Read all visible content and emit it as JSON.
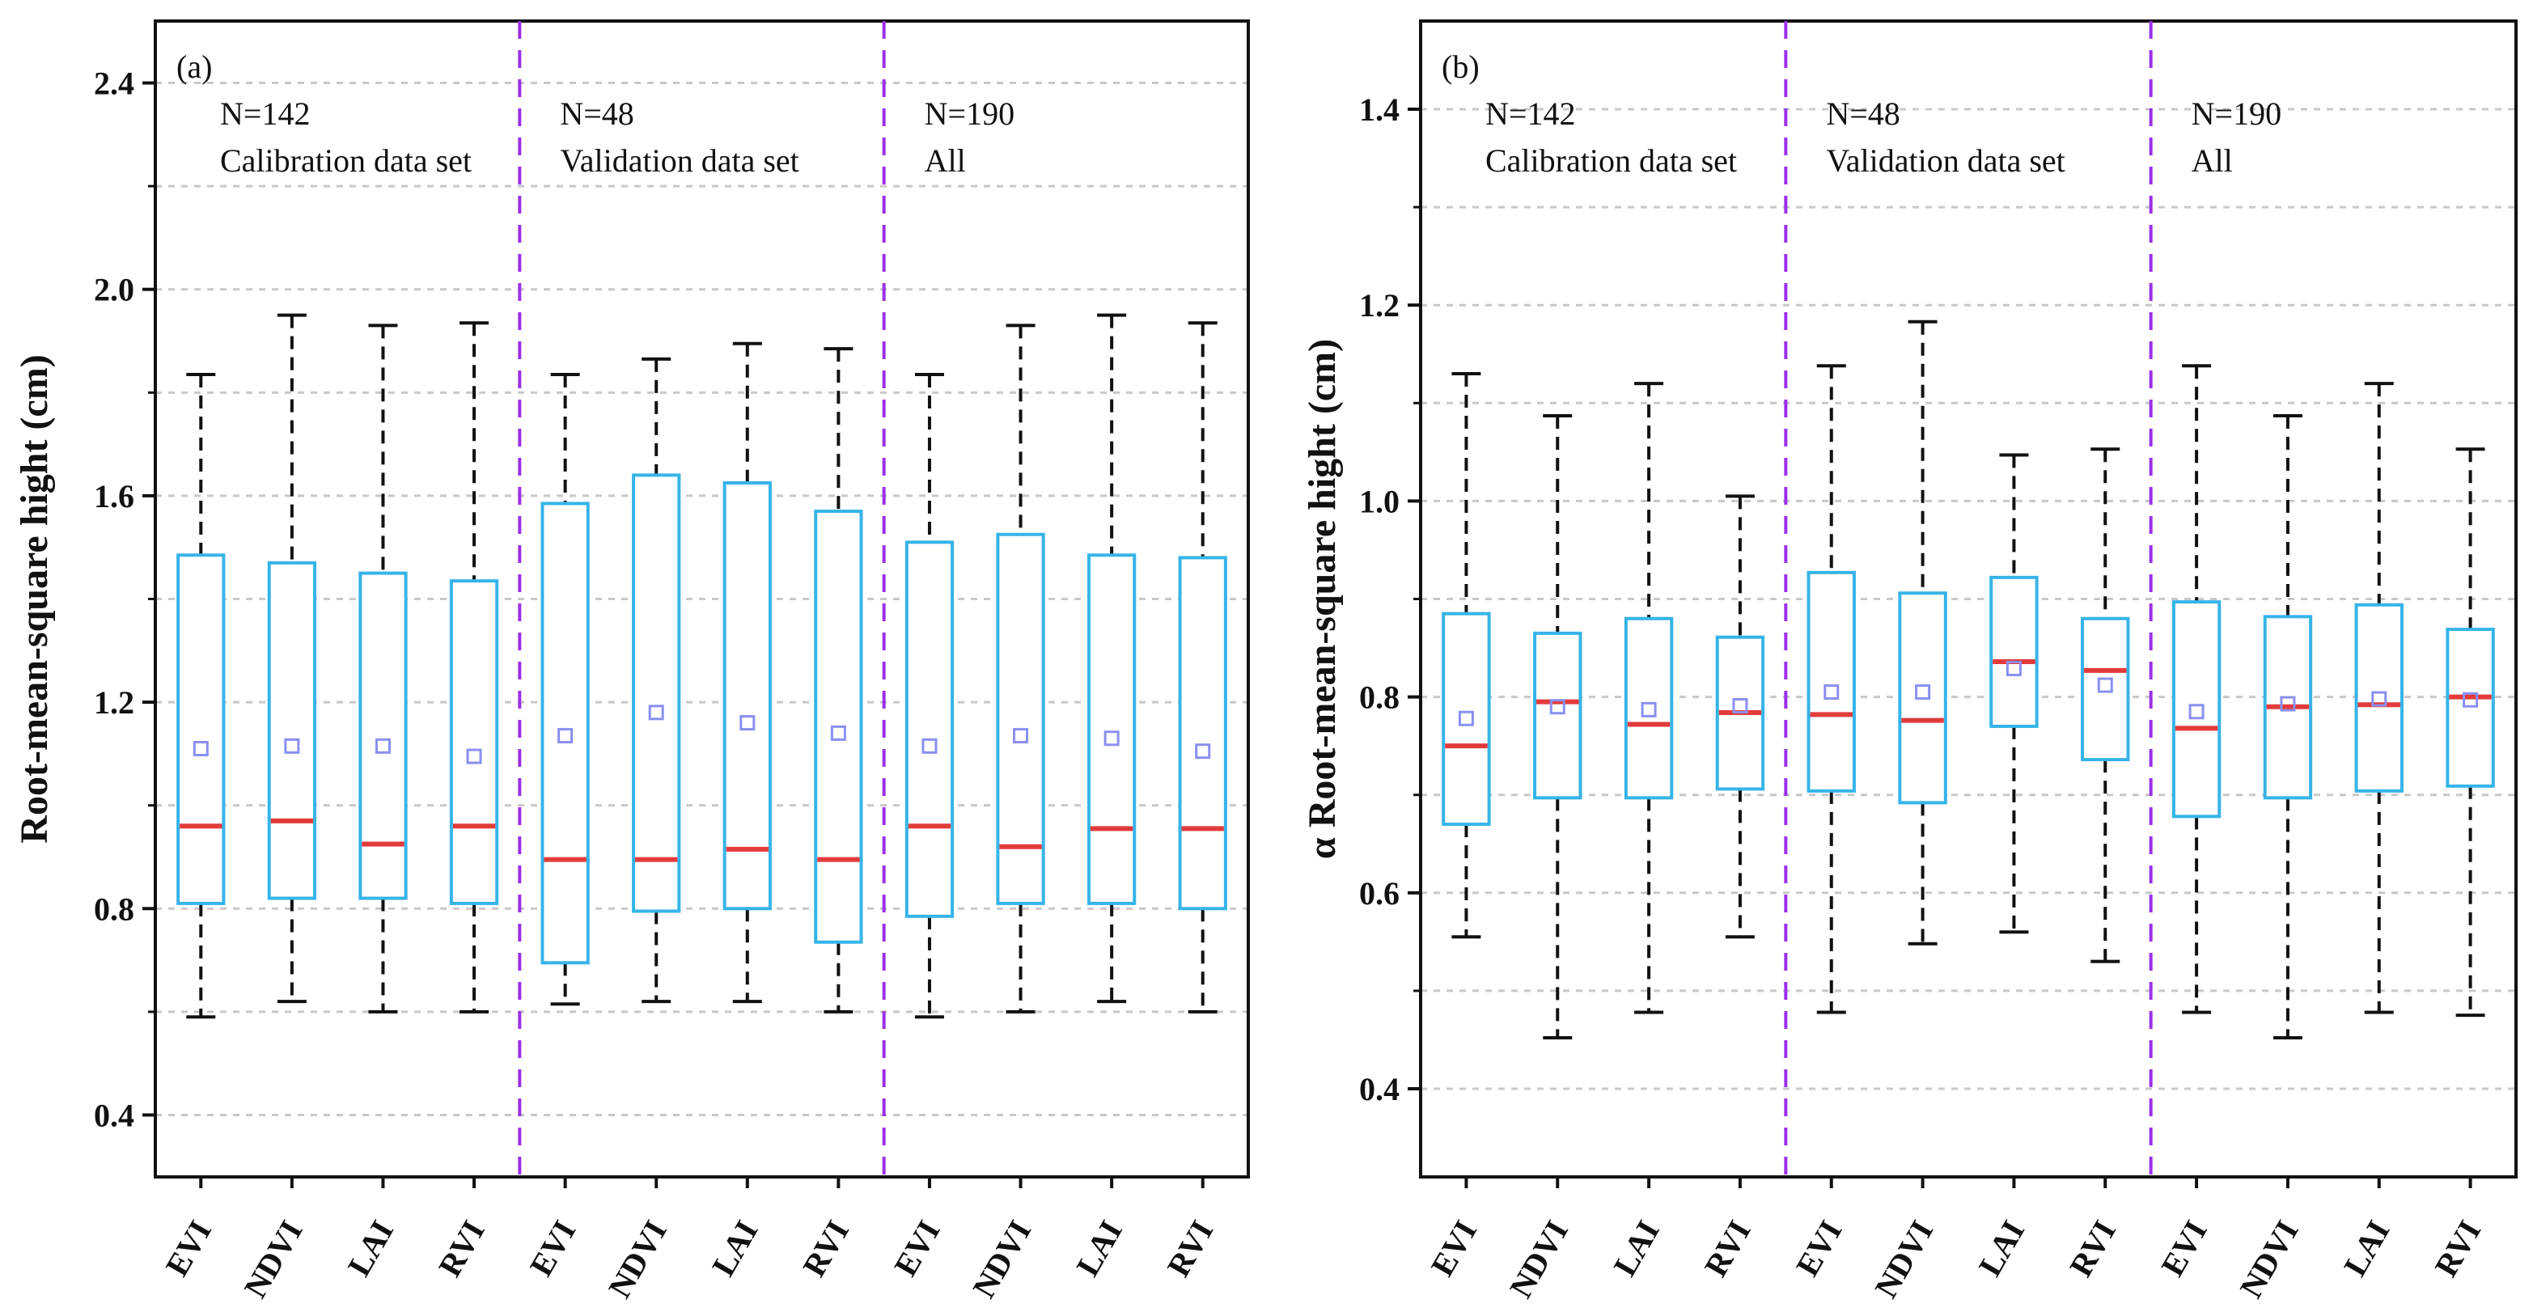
{
  "chart_data": [
    {
      "type": "box",
      "panel_label": "(a)",
      "ylabel": "Root-mean-square hight (cm)",
      "ylim": [
        0.28,
        2.52
      ],
      "yticks": [
        0.4,
        0.8,
        1.2,
        1.6,
        2.0,
        2.4
      ],
      "yticklabels": [
        "0.4",
        "0.8",
        "1.2",
        "1.6",
        "2.0",
        "2.4"
      ],
      "grid": true,
      "groups": [
        {
          "n_label": "N=142",
          "desc": "Calibration data set",
          "boxes": [
            {
              "category": "EVI",
              "min": 0.59,
              "q1": 0.81,
              "median": 0.96,
              "q3": 1.485,
              "max": 1.835,
              "mean": 1.11
            },
            {
              "category": "NDVI",
              "min": 0.62,
              "q1": 0.82,
              "median": 0.97,
              "q3": 1.47,
              "max": 1.95,
              "mean": 1.115
            },
            {
              "category": "LAI",
              "min": 0.6,
              "q1": 0.82,
              "median": 0.925,
              "q3": 1.45,
              "max": 1.93,
              "mean": 1.115
            },
            {
              "category": "RVI",
              "min": 0.6,
              "q1": 0.81,
              "median": 0.96,
              "q3": 1.435,
              "max": 1.935,
              "mean": 1.095
            }
          ]
        },
        {
          "n_label": "N=48",
          "desc": "Validation data set",
          "boxes": [
            {
              "category": "EVI",
              "min": 0.615,
              "q1": 0.695,
              "median": 0.895,
              "q3": 1.585,
              "max": 1.835,
              "mean": 1.135
            },
            {
              "category": "NDVI",
              "min": 0.62,
              "q1": 0.795,
              "median": 0.895,
              "q3": 1.64,
              "max": 1.865,
              "mean": 1.18
            },
            {
              "category": "LAI",
              "min": 0.62,
              "q1": 0.8,
              "median": 0.915,
              "q3": 1.625,
              "max": 1.895,
              "mean": 1.16
            },
            {
              "category": "RVI",
              "min": 0.6,
              "q1": 0.735,
              "median": 0.895,
              "q3": 1.57,
              "max": 1.885,
              "mean": 1.14
            }
          ]
        },
        {
          "n_label": "N=190",
          "desc": "All",
          "boxes": [
            {
              "category": "EVI",
              "min": 0.59,
              "q1": 0.785,
              "median": 0.96,
              "q3": 1.51,
              "max": 1.835,
              "mean": 1.115
            },
            {
              "category": "NDVI",
              "min": 0.6,
              "q1": 0.81,
              "median": 0.92,
              "q3": 1.525,
              "max": 1.93,
              "mean": 1.135
            },
            {
              "category": "LAI",
              "min": 0.62,
              "q1": 0.81,
              "median": 0.955,
              "q3": 1.485,
              "max": 1.95,
              "mean": 1.13
            },
            {
              "category": "RVI",
              "min": 0.6,
              "q1": 0.8,
              "median": 0.955,
              "q3": 1.48,
              "max": 1.935,
              "mean": 1.105
            }
          ]
        }
      ]
    },
    {
      "type": "box",
      "panel_label": "(b)",
      "ylabel": "α Root-mean-square hight (cm)",
      "ylim": [
        0.31,
        1.49
      ],
      "yticks": [
        0.4,
        0.6,
        0.8,
        1.0,
        1.2,
        1.4
      ],
      "yticklabels": [
        "0.4",
        "0.6",
        "0.8",
        "1.0",
        "1.2",
        "1.4"
      ],
      "grid": true,
      "groups": [
        {
          "n_label": "N=142",
          "desc": "Calibration data set",
          "boxes": [
            {
              "category": "EVI",
              "min": 0.555,
              "q1": 0.67,
              "median": 0.75,
              "q3": 0.885,
              "max": 1.13,
              "mean": 0.778
            },
            {
              "category": "NDVI",
              "min": 0.452,
              "q1": 0.697,
              "median": 0.795,
              "q3": 0.865,
              "max": 1.087,
              "mean": 0.79
            },
            {
              "category": "LAI",
              "min": 0.478,
              "q1": 0.697,
              "median": 0.772,
              "q3": 0.88,
              "max": 1.12,
              "mean": 0.787
            },
            {
              "category": "RVI",
              "min": 0.555,
              "q1": 0.706,
              "median": 0.784,
              "q3": 0.861,
              "max": 1.005,
              "mean": 0.791
            }
          ]
        },
        {
          "n_label": "N=48",
          "desc": "Validation data set",
          "boxes": [
            {
              "category": "EVI",
              "min": 0.478,
              "q1": 0.704,
              "median": 0.782,
              "q3": 0.927,
              "max": 1.138,
              "mean": 0.805
            },
            {
              "category": "NDVI",
              "min": 0.548,
              "q1": 0.692,
              "median": 0.776,
              "q3": 0.906,
              "max": 1.183,
              "mean": 0.805
            },
            {
              "category": "LAI",
              "min": 0.56,
              "q1": 0.77,
              "median": 0.836,
              "q3": 0.922,
              "max": 1.047,
              "mean": 0.829
            },
            {
              "category": "RVI",
              "min": 0.53,
              "q1": 0.736,
              "median": 0.827,
              "q3": 0.88,
              "max": 1.053,
              "mean": 0.812
            }
          ]
        },
        {
          "n_label": "N=190",
          "desc": "All",
          "boxes": [
            {
              "category": "EVI",
              "min": 0.478,
              "q1": 0.678,
              "median": 0.768,
              "q3": 0.897,
              "max": 1.138,
              "mean": 0.785
            },
            {
              "category": "NDVI",
              "min": 0.452,
              "q1": 0.697,
              "median": 0.79,
              "q3": 0.882,
              "max": 1.087,
              "mean": 0.793
            },
            {
              "category": "LAI",
              "min": 0.478,
              "q1": 0.704,
              "median": 0.792,
              "q3": 0.894,
              "max": 1.12,
              "mean": 0.798
            },
            {
              "category": "RVI",
              "min": 0.475,
              "q1": 0.709,
              "median": 0.8,
              "q3": 0.869,
              "max": 1.053,
              "mean": 0.797
            }
          ]
        }
      ]
    }
  ],
  "style": {
    "box_color": "#36b4e8",
    "median_color": "#e23b3b",
    "mean_marker_color": "#8a8ff0",
    "separator_color": "#9b30e8",
    "whisker_color": "#111111",
    "grid_color": "#c8c8c8"
  }
}
